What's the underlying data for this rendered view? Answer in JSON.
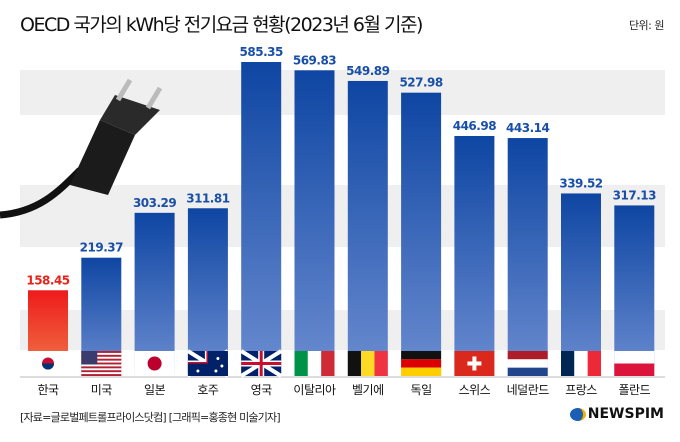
{
  "header": {
    "title": "OECD 국가의 kWh당 전기요금 현황(2023년 6월 기준)",
    "unit": "단위: 원"
  },
  "footer": {
    "source": "[자료=글로벌페트롤프라이스닷컴] [그래픽=홍종현 미술기자]",
    "logo": "NEWSPIM"
  },
  "colors": {
    "highlight": "#e8231a",
    "bar": "#1a4fa8",
    "value_label": "#1a4fa8"
  },
  "chart_data": {
    "type": "bar",
    "title": "OECD 국가의 kWh당 전기요금 현황(2023년 6월 기준)",
    "xlabel": "",
    "ylabel": "단위: 원",
    "ylim": [
      0,
      600
    ],
    "categories": [
      "한국",
      "미국",
      "일본",
      "호주",
      "영국",
      "이탈리아",
      "벨기에",
      "독일",
      "스위스",
      "네덜란드",
      "프랑스",
      "폴란드"
    ],
    "values": [
      158.45,
      219.37,
      303.29,
      311.81,
      585.35,
      569.83,
      549.89,
      527.98,
      446.98,
      443.14,
      339.52,
      317.13
    ],
    "value_labels": [
      "158.45",
      "219.37",
      "303.29",
      "311.81",
      "585.35",
      "569.83",
      "549.89",
      "527.98",
      "446.98",
      "443.14",
      "339.52",
      "317.13"
    ],
    "flags": [
      "kr",
      "us",
      "jp",
      "au",
      "gb",
      "it",
      "be",
      "de",
      "ch",
      "nl",
      "fr",
      "pl"
    ],
    "highlight_index": 0
  }
}
